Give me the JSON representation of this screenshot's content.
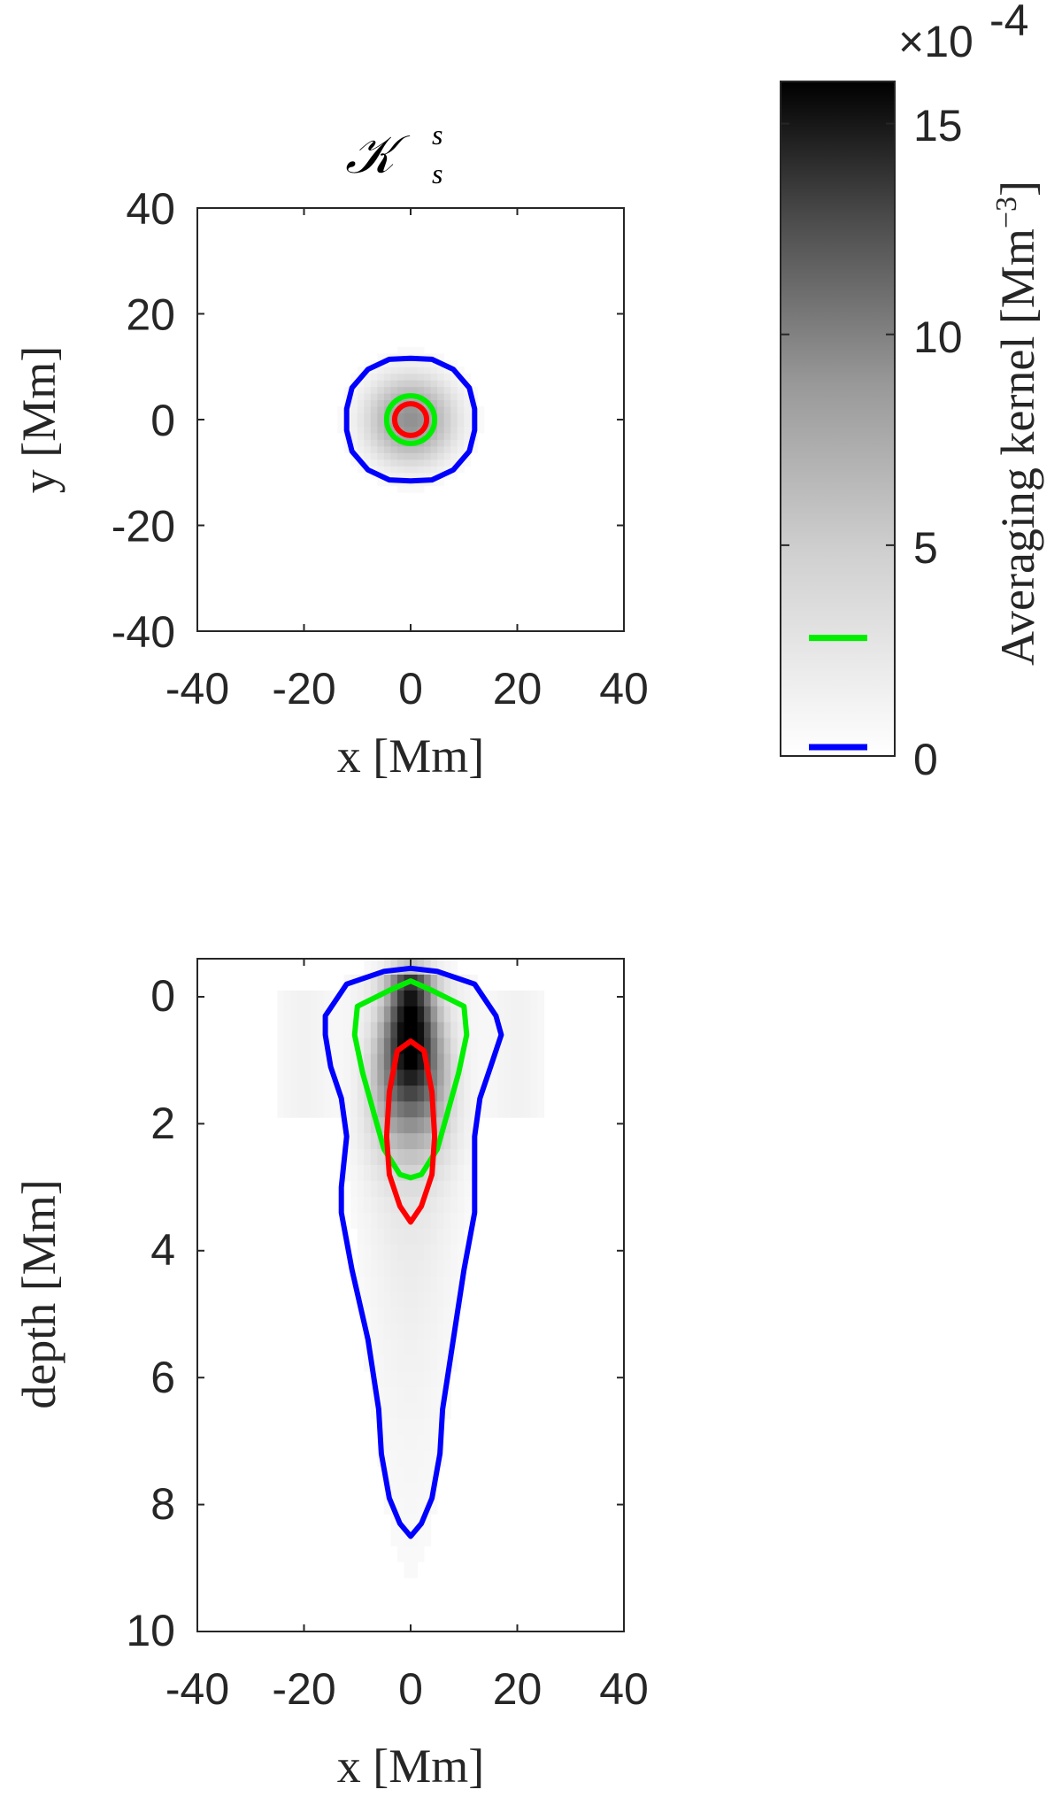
{
  "chart_data": [
    {
      "type": "heatmap",
      "title_main": "𝒦",
      "title_sup": "s",
      "title_sub": "s",
      "xlabel": "x [Mm]",
      "ylabel": "y [Mm]",
      "xlim": [
        -40,
        40
      ],
      "ylim": [
        -40,
        40
      ],
      "xticks": [
        "-40",
        "-20",
        "0",
        "20",
        "40"
      ],
      "yticks": [
        "40",
        "20",
        "0",
        "-20",
        "-40"
      ],
      "peak": {
        "x": 0,
        "y": 0,
        "sigma": 5,
        "value": 0.0006
      },
      "contours": [
        {
          "color": "#0000ff",
          "level": 1e-05,
          "points": [
            [
              0,
              11.6
            ],
            [
              4,
              11.4
            ],
            [
              8,
              9.5
            ],
            [
              11,
              6
            ],
            [
              12,
              2
            ],
            [
              12,
              -2
            ],
            [
              11,
              -6
            ],
            [
              8,
              -9.5
            ],
            [
              4,
              -11.4
            ],
            [
              0,
              -11.6
            ],
            [
              -4,
              -11.4
            ],
            [
              -8,
              -9.5
            ],
            [
              -11,
              -6
            ],
            [
              -12,
              -2
            ],
            [
              -12,
              2
            ],
            [
              -11,
              6
            ],
            [
              -8,
              9.5
            ],
            [
              -4,
              11.4
            ]
          ]
        },
        {
          "color": "#00ee00",
          "level": 0.00028,
          "radius": 4.5
        },
        {
          "color": "#ff0000",
          "level": 0.0005,
          "radius": 3.0
        }
      ]
    },
    {
      "type": "heatmap",
      "xlabel": "x [Mm]",
      "ylabel": "depth [Mm]",
      "xlim": [
        -40,
        40
      ],
      "ylim": [
        10,
        -0.6
      ],
      "xticks": [
        "-40",
        "-20",
        "0",
        "20",
        "40"
      ],
      "yticks": [
        "0",
        "2",
        "4",
        "6",
        "8",
        "10"
      ],
      "peak": {
        "x": 0,
        "depth": 0.5,
        "value": 0.0016
      },
      "contours": [
        {
          "color": "#0000ff",
          "level": 1e-05,
          "points": [
            [
              0,
              -0.45
            ],
            [
              5,
              -0.4
            ],
            [
              12,
              -0.2
            ],
            [
              16,
              0.3
            ],
            [
              17,
              0.6
            ],
            [
              15,
              1.1
            ],
            [
              13,
              1.6
            ],
            [
              12,
              2.2
            ],
            [
              12,
              3.0
            ],
            [
              12,
              3.4
            ],
            [
              10,
              4.3
            ],
            [
              8,
              5.4
            ],
            [
              6,
              6.5
            ],
            [
              5.5,
              7.2
            ],
            [
              4,
              7.9
            ],
            [
              2,
              8.3
            ],
            [
              0,
              8.5
            ],
            [
              -2,
              8.3
            ],
            [
              -4,
              7.9
            ],
            [
              -5.5,
              7.2
            ],
            [
              -6,
              6.5
            ],
            [
              -8,
              5.4
            ],
            [
              -11,
              4.3
            ],
            [
              -13,
              3.4
            ],
            [
              -13,
              3.0
            ],
            [
              -12,
              2.2
            ],
            [
              -13,
              1.6
            ],
            [
              -15,
              1.1
            ],
            [
              -16,
              0.6
            ],
            [
              -16,
              0.3
            ],
            [
              -12,
              -0.2
            ],
            [
              -5,
              -0.4
            ]
          ]
        },
        {
          "color": "#00ee00",
          "level": 0.00028,
          "points": [
            [
              0,
              -0.25
            ],
            [
              4,
              -0.1
            ],
            [
              10,
              0.15
            ],
            [
              10.5,
              0.6
            ],
            [
              9,
              1.2
            ],
            [
              7,
              1.8
            ],
            [
              5,
              2.4
            ],
            [
              2,
              2.8
            ],
            [
              0,
              2.85
            ],
            [
              -2,
              2.8
            ],
            [
              -5,
              2.4
            ],
            [
              -7,
              1.8
            ],
            [
              -9,
              1.2
            ],
            [
              -10.5,
              0.6
            ],
            [
              -10,
              0.15
            ],
            [
              -4,
              -0.1
            ]
          ]
        },
        {
          "color": "#ff0000",
          "level": 0.0005,
          "points": [
            [
              0,
              0.7
            ],
            [
              2.5,
              0.85
            ],
            [
              4,
              1.5
            ],
            [
              4.5,
              2.2
            ],
            [
              4,
              2.8
            ],
            [
              2,
              3.3
            ],
            [
              0,
              3.55
            ],
            [
              -2,
              3.3
            ],
            [
              -4,
              2.8
            ],
            [
              -4.5,
              2.2
            ],
            [
              -4,
              1.5
            ],
            [
              -2.5,
              0.85
            ]
          ]
        }
      ]
    },
    {
      "type": "colorbar",
      "label": "Averaging kernel [Mm",
      "label_exponent": "−3",
      "label_close": "]",
      "multiplier": "×10",
      "multiplier_exponent": "-4",
      "range": [
        0,
        16
      ],
      "ticks": [
        "15",
        "10",
        "5",
        "0"
      ],
      "tick_values": [
        15,
        10,
        5,
        0
      ],
      "markers": [
        {
          "color": "#00ee00",
          "value": 2.8
        },
        {
          "color": "#0000ff",
          "value": 0.1
        }
      ]
    }
  ]
}
